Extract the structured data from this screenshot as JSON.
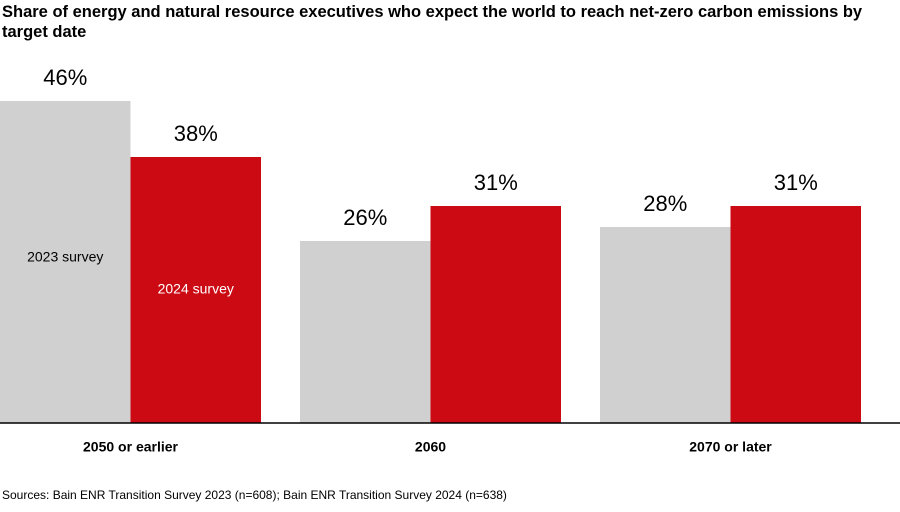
{
  "chart_data": {
    "type": "bar",
    "title": "Share of energy and natural resource executives who expect the world to reach net-zero carbon emissions by target date",
    "categories": [
      "2050 or earlier",
      "2060",
      "2070 or later"
    ],
    "series": [
      {
        "name": "2023 survey",
        "color": "#d0d0d0",
        "values": [
          46,
          26,
          28
        ],
        "value_labels": [
          "46%",
          "26%",
          "28%"
        ]
      },
      {
        "name": "2024 survey",
        "color": "#cc0a14",
        "values": [
          38,
          31,
          31
        ],
        "value_labels": [
          "38%",
          "31%",
          "31%"
        ]
      }
    ],
    "ylim": [
      0,
      50
    ],
    "source": "Sources: Bain ENR Transition Survey 2023 (n=608); Bain ENR Transition Survey 2024 (n=638)"
  }
}
